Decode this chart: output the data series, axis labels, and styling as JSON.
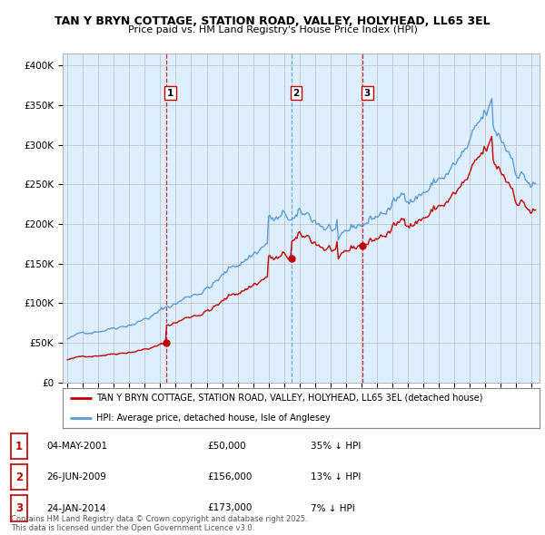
{
  "title1": "TAN Y BRYN COTTAGE, STATION ROAD, VALLEY, HOLYHEAD, LL65 3EL",
  "title2": "Price paid vs. HM Land Registry's House Price Index (HPI)",
  "ylabel_ticks": [
    "£0",
    "£50K",
    "£100K",
    "£150K",
    "£200K",
    "£250K",
    "£300K",
    "£350K",
    "£400K"
  ],
  "ytick_values": [
    0,
    50000,
    100000,
    150000,
    200000,
    250000,
    300000,
    350000,
    400000
  ],
  "ylim": [
    0,
    415000
  ],
  "xlim_start": 1994.7,
  "xlim_end": 2025.5,
  "hpi_color": "#5b9bd5",
  "hpi_fill_color": "#ddeeff",
  "price_color": "#c00000",
  "vline_color_1": "#c00000",
  "vline_color_23": "#5b9bd5",
  "bg_color": "#ffffff",
  "chart_bg_color": "#ddeeff",
  "grid_color": "#bbbbbb",
  "transactions": [
    {
      "label": "1",
      "date": "04-MAY-2001",
      "price": 50000,
      "pct": "35% ↓ HPI",
      "x": 2001.36
    },
    {
      "label": "2",
      "date": "26-JUN-2009",
      "price": 156000,
      "pct": "13% ↓ HPI",
      "x": 2009.49
    },
    {
      "label": "3",
      "date": "24-JAN-2014",
      "price": 173000,
      "pct": "7% ↓ HPI",
      "x": 2014.07
    }
  ],
  "legend_line1": "TAN Y BRYN COTTAGE, STATION ROAD, VALLEY, HOLYHEAD, LL65 3EL (detached house)",
  "legend_line2": "HPI: Average price, detached house, Isle of Anglesey",
  "footnote": "Contains HM Land Registry data © Crown copyright and database right 2025.\nThis data is licensed under the Open Government Licence v3.0."
}
